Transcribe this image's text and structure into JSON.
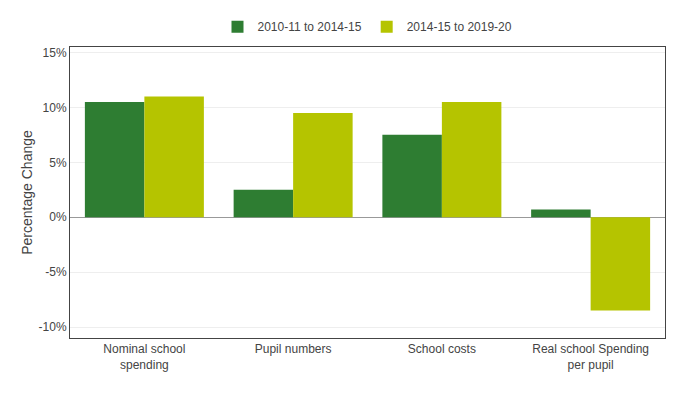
{
  "chart_data": {
    "type": "bar",
    "categories": [
      "Nominal school\nspending",
      "Pupil numbers",
      "School costs",
      "Real school Spending\nper pupil"
    ],
    "series": [
      {
        "name": "2010-11 to 2014-15",
        "color": "#2e7d32",
        "values": [
          10.5,
          2.5,
          7.5,
          0.7
        ]
      },
      {
        "name": "2014-15 to 2019-20",
        "color": "#b5c400",
        "values": [
          11.0,
          9.5,
          10.5,
          -8.5
        ]
      }
    ],
    "ylabel": "Percentage Change",
    "ylim": [
      -11.0,
      15.5
    ],
    "yticks": [
      {
        "value": -10,
        "label": "-10%"
      },
      {
        "value": -5,
        "label": "-5%"
      },
      {
        "value": 0,
        "label": "0%"
      },
      {
        "value": 5,
        "label": "5%"
      },
      {
        "value": 10,
        "label": "10%"
      },
      {
        "value": 15,
        "label": "15%"
      }
    ],
    "grid": true,
    "legend": "top"
  }
}
